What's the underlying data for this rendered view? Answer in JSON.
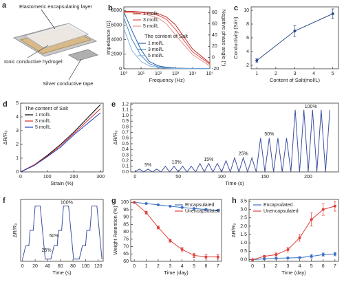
{
  "panel_a": {
    "label": "a",
    "labels": [
      "Elastomeric encapsulating layer",
      "Ionic conductive hydrogel",
      "Silver conductive tape"
    ]
  },
  "chart_data": [
    {
      "label": "b",
      "type": "line",
      "xscale": "log",
      "x": [
        1,
        3,
        10,
        30,
        100,
        300,
        1000,
        10000,
        100000
      ],
      "xlim": [
        1,
        100000
      ],
      "xticks": [
        {
          "value": 1,
          "label": "10⁰"
        },
        {
          "value": 10,
          "label": "10¹"
        },
        {
          "value": 100,
          "label": "10²"
        },
        {
          "value": 1000,
          "label": "10³"
        },
        {
          "value": 10000,
          "label": "10⁴"
        },
        {
          "value": 100000,
          "label": "10⁵"
        }
      ],
      "ylim": [
        0,
        8500
      ],
      "yticks": [
        0,
        2000,
        4000,
        6000,
        8000
      ],
      "y2lim": [
        -20,
        90
      ],
      "y2ticks": [
        -20,
        0,
        20,
        40,
        60,
        80
      ],
      "ycolor": "#2a6ebb",
      "y2color": "#d0312d",
      "xlabel": "Frequency (Hz)",
      "ylabel": "Impedance (Ω)",
      "y2label": "Negative phase angle (°)",
      "legend_title": "The content of Salt",
      "series": [
        {
          "name": "1 mol/L",
          "color": "#1f5fa8",
          "values": [
            7800,
            5200,
            2600,
            1000,
            400,
            200,
            100,
            50,
            30
          ]
        },
        {
          "name": "3 mol/L",
          "color": "#4a86c8",
          "values": [
            7000,
            4000,
            1800,
            700,
            250,
            120,
            60,
            30,
            20
          ]
        },
        {
          "name": "5 mol/L",
          "color": "#86b0de",
          "values": [
            5500,
            2500,
            1000,
            400,
            150,
            70,
            40,
            20,
            10
          ]
        },
        {
          "name": "1 mol/L",
          "color": "#c0302b",
          "axis": "y2",
          "values": [
            82,
            82,
            81,
            80,
            78,
            72,
            58,
            15,
            -10
          ]
        },
        {
          "name": "3 mol/L",
          "color": "#d9534f",
          "axis": "y2",
          "values": [
            81,
            81,
            80,
            78,
            75,
            68,
            50,
            10,
            -12
          ]
        },
        {
          "name": "5 mol/L",
          "color": "#eb8f8b",
          "axis": "y2",
          "values": [
            80,
            80,
            78,
            75,
            70,
            60,
            40,
            5,
            -15
          ]
        }
      ]
    },
    {
      "label": "c",
      "type": "line",
      "markers": true,
      "x": [
        1,
        3,
        5
      ],
      "xlim": [
        0.7,
        5.3
      ],
      "xticks": [
        1,
        2,
        3,
        4,
        5
      ],
      "ylim": [
        1.5,
        10.5
      ],
      "yticks": [
        2,
        4,
        6,
        8,
        10
      ],
      "xlabel": "Content of Salt(mol/L)",
      "ylabel": "Conductivity (S/m)",
      "series": [
        {
          "color": "#2c4a8a",
          "values": [
            2.7,
            7.0,
            9.5
          ],
          "errors": [
            0.3,
            0.8,
            0.7
          ]
        }
      ]
    },
    {
      "label": "d",
      "type": "line",
      "x": [
        0,
        50,
        100,
        150,
        200,
        250,
        300
      ],
      "xlim": [
        0,
        310
      ],
      "xticks": [
        0,
        100,
        200,
        300
      ],
      "ylim": [
        0,
        5
      ],
      "yticks": [
        0,
        1,
        2,
        3,
        4,
        5
      ],
      "xlabel": "Strain (%)",
      "ylabel": "ΔR/R₀",
      "legend": "upper left",
      "legend_title": "The content of Salt",
      "series": [
        {
          "name": "1 mol/L",
          "color": "#000000",
          "values": [
            0,
            0.5,
            1.2,
            2.0,
            2.9,
            3.9,
            4.9
          ]
        },
        {
          "name": "3 mol/L",
          "color": "#d62728",
          "values": [
            0,
            0.5,
            1.15,
            1.9,
            2.8,
            3.7,
            4.6
          ]
        },
        {
          "name": "5 mol/L",
          "color": "#1f3fbf",
          "values": [
            0,
            0.45,
            1.1,
            1.8,
            2.7,
            3.5,
            4.3
          ]
        }
      ]
    },
    {
      "label": "e",
      "type": "line",
      "x": [
        0,
        5,
        10,
        15,
        20,
        25,
        30,
        35,
        40,
        45,
        50,
        55,
        60,
        65,
        70,
        75,
        80,
        85,
        90,
        95,
        100,
        105,
        110,
        115,
        120,
        125,
        130,
        135,
        140,
        145,
        150,
        155,
        160,
        165,
        170,
        175,
        180,
        185,
        190,
        195,
        200,
        205,
        210,
        215,
        220,
        225
      ],
      "xlim": [
        -5,
        235
      ],
      "xticks": [
        0,
        50,
        100,
        150,
        200
      ],
      "ylim": [
        0,
        1.22
      ],
      "yticks": [
        {
          "value": 0,
          "label": "0.0"
        },
        0.1,
        0.2,
        0.3,
        0.4,
        0.5,
        0.6,
        0.7,
        0.8,
        0.9,
        {
          "value": 1,
          "label": "1.0"
        },
        1.1,
        1.2
      ],
      "xlabel": "Time (s)",
      "ylabel": "ΔR/R₀",
      "annotations": [
        "5%",
        "10%",
        "15%",
        "25%",
        "50%",
        "100%"
      ],
      "series": [
        {
          "color": "#3b4fa0",
          "values": [
            0,
            0.05,
            0,
            0.05,
            0,
            0.05,
            0,
            0.1,
            0,
            0.1,
            0,
            0.1,
            0,
            0.1,
            0,
            0.15,
            0,
            0.15,
            0,
            0.15,
            0,
            0.2,
            0,
            0.25,
            0,
            0.25,
            0,
            0.25,
            0,
            0.6,
            0,
            0.6,
            0,
            0.6,
            0,
            0.6,
            0,
            1.1,
            0,
            1.1,
            0,
            1.1,
            0,
            1.1,
            0,
            1.1
          ]
        }
      ]
    },
    {
      "label": "f",
      "type": "line",
      "x": [
        0,
        5,
        10,
        12,
        17,
        20,
        28,
        36,
        45,
        50,
        55,
        57,
        62,
        65,
        73,
        81,
        90,
        95,
        100,
        102,
        107,
        110,
        118,
        126
      ],
      "xlim": [
        -3,
        128
      ],
      "xticks": [
        0,
        20,
        40,
        60,
        80,
        100,
        120
      ],
      "ylim": [
        -0.05,
        1.35
      ],
      "xlabel": "Time (s)",
      "ylabel": "ΔR/R₀",
      "annotations": [
        "100%",
        "50%",
        "25%"
      ],
      "series": [
        {
          "color": "#3b4fa0",
          "values": [
            0,
            0.3,
            0.3,
            0.65,
            0.65,
            1.2,
            1.2,
            0,
            0,
            0.3,
            0.3,
            0.65,
            0.65,
            1.2,
            1.2,
            0,
            0,
            0.3,
            0.3,
            0.65,
            0.65,
            1.2,
            1.2,
            0
          ]
        }
      ]
    },
    {
      "label": "g",
      "type": "line",
      "markers": true,
      "x": [
        0,
        1,
        2,
        3,
        4,
        5,
        6,
        7
      ],
      "xlim": [
        -0.3,
        7.3
      ],
      "xticks": [
        0,
        1,
        2,
        3,
        4,
        5,
        6,
        7
      ],
      "ylim": [
        60,
        102
      ],
      "yticks": [
        60,
        65,
        70,
        75,
        80,
        85,
        90,
        95,
        100
      ],
      "xlabel": "Time (day)",
      "ylabel": "Weight Retention (%)",
      "legend": "upper right",
      "series": [
        {
          "name": "Encapsulated",
          "color": "#3b6fc4",
          "values": [
            100,
            99.2,
            98.3,
            97.4,
            96.5,
            95.8,
            95.2,
            94.6
          ],
          "errors": [
            0.2,
            0.3,
            0.3,
            0.4,
            0.4,
            0.5,
            0.5,
            0.5
          ]
        },
        {
          "name": "Unencapsulated",
          "color": "#e0403a",
          "values": [
            100,
            93,
            83,
            74,
            68,
            64,
            63,
            63
          ],
          "errors": [
            0.5,
            1,
            1,
            1,
            1.5,
            1.5,
            1.5,
            1.5
          ]
        }
      ]
    },
    {
      "label": "h",
      "type": "line",
      "markers": true,
      "x": [
        0,
        1,
        2,
        3,
        4,
        5,
        6,
        7
      ],
      "xlim": [
        -0.3,
        7.3
      ],
      "xticks": [
        0,
        1,
        2,
        3,
        4,
        5,
        6,
        7
      ],
      "ylim": [
        -0.1,
        3.6
      ],
      "yticks": [
        {
          "value": 0,
          "label": "0.0"
        },
        0.5,
        {
          "value": 1,
          "label": "1.0"
        },
        1.5,
        {
          "value": 2,
          "label": "2.0"
        },
        2.5,
        {
          "value": 3,
          "label": "3.0"
        },
        3.5
      ],
      "xlabel": "Time (day)",
      "ylabel": "ΔR/R₀",
      "legend": "upper left",
      "series": [
        {
          "name": "Encapsulated",
          "color": "#3b6fc4",
          "values": [
            0,
            0.05,
            0.08,
            0.1,
            0.12,
            0.2,
            0.3,
            0.33
          ],
          "errors": [
            0,
            0.05,
            0.05,
            0.05,
            0.05,
            0.1,
            0.1,
            0.1
          ]
        },
        {
          "name": "Unencapsulated",
          "color": "#e0403a",
          "values": [
            0,
            0.2,
            0.3,
            0.6,
            1.3,
            2.4,
            3.0,
            3.2
          ],
          "errors": [
            0,
            0.05,
            0.1,
            0.15,
            0.2,
            0.4,
            0.35,
            0.3
          ]
        }
      ]
    }
  ]
}
